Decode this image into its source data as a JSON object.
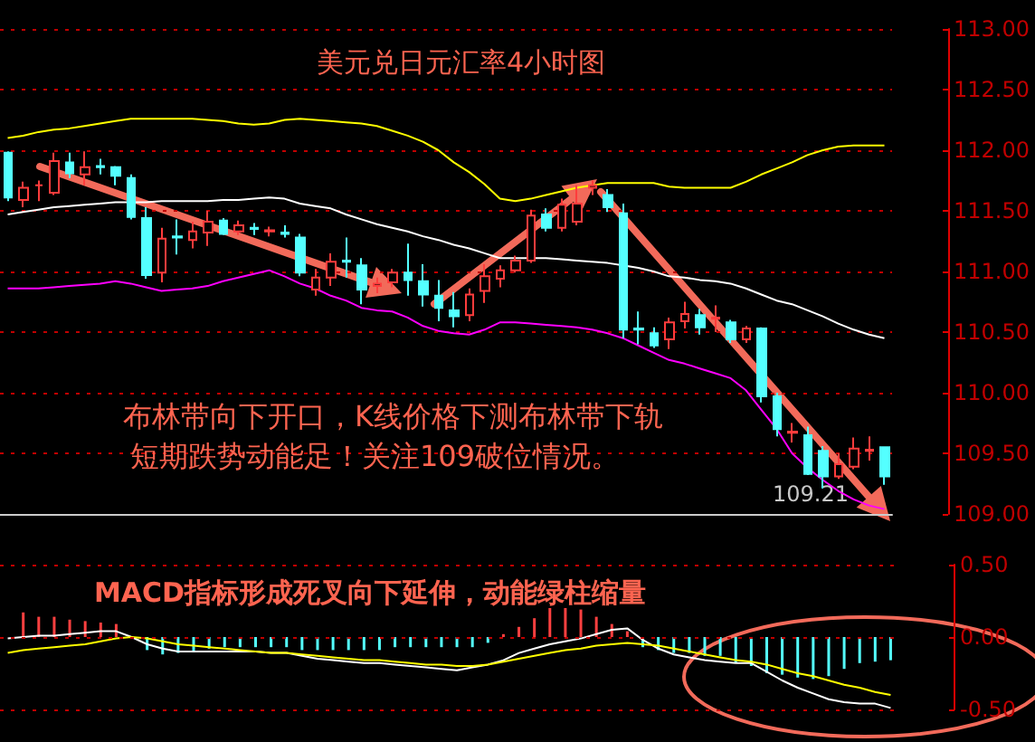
{
  "chart_data": [
    {
      "type": "candlestick",
      "title": "美元兑日元汇率4小时图",
      "tick_labels": "y",
      "grid": "y",
      "marker": "none",
      "line_style": "solid",
      "categories": [
        null,
        null,
        null,
        null,
        null,
        null,
        null,
        null,
        null,
        null,
        null,
        null,
        null,
        null,
        null,
        null,
        null,
        null,
        null,
        null,
        null,
        null,
        null,
        null,
        null,
        null,
        null,
        null,
        null,
        null,
        null,
        null,
        null,
        null,
        null,
        null,
        null,
        null,
        null,
        null,
        null,
        null,
        null,
        null,
        null,
        null,
        null,
        null,
        null,
        null,
        null,
        null,
        null,
        null,
        null,
        null,
        null,
        null
      ],
      "ohlc": [
        [
          111.98,
          111.99,
          111.58,
          111.61
        ],
        [
          111.59,
          111.74,
          111.53,
          111.69
        ],
        [
          111.71,
          111.75,
          111.58,
          111.71
        ],
        [
          111.65,
          111.98,
          111.63,
          111.91
        ],
        [
          111.9,
          111.98,
          111.77,
          111.81
        ],
        [
          111.8,
          111.99,
          111.71,
          111.86
        ],
        [
          111.87,
          111.93,
          111.8,
          111.86
        ],
        [
          111.86,
          111.87,
          111.71,
          111.79
        ],
        [
          111.77,
          111.8,
          111.43,
          111.45
        ],
        [
          111.44,
          111.53,
          110.94,
          110.97
        ],
        [
          110.99,
          111.36,
          110.91,
          111.27
        ],
        [
          111.29,
          111.43,
          111.14,
          111.28
        ],
        [
          111.26,
          111.41,
          111.19,
          111.33
        ],
        [
          111.32,
          111.5,
          111.21,
          111.41
        ],
        [
          111.42,
          111.44,
          111.3,
          111.31
        ],
        [
          111.33,
          111.42,
          111.3,
          111.38
        ],
        [
          111.36,
          111.4,
          111.3,
          111.35
        ],
        [
          111.33,
          111.37,
          111.29,
          111.34
        ],
        [
          111.32,
          111.38,
          111.28,
          111.31
        ],
        [
          111.28,
          111.31,
          110.96,
          110.99
        ],
        [
          110.85,
          111.02,
          110.8,
          110.95
        ],
        [
          110.95,
          111.15,
          110.88,
          111.08
        ],
        [
          111.09,
          111.28,
          110.95,
          111.08
        ],
        [
          111.05,
          111.11,
          110.73,
          110.85
        ],
        [
          110.88,
          110.95,
          110.82,
          110.9
        ],
        [
          110.91,
          111.02,
          110.87,
          110.99
        ],
        [
          110.99,
          111.23,
          110.8,
          110.93
        ],
        [
          110.92,
          111.06,
          110.71,
          110.81
        ],
        [
          110.8,
          110.93,
          110.59,
          110.7
        ],
        [
          110.68,
          110.83,
          110.54,
          110.63
        ],
        [
          110.64,
          110.86,
          110.59,
          110.81
        ],
        [
          110.84,
          111.06,
          110.74,
          110.96
        ],
        [
          110.94,
          111.05,
          110.87,
          111.01
        ],
        [
          111.01,
          111.13,
          110.99,
          111.09
        ],
        [
          111.09,
          111.51,
          111.07,
          111.46
        ],
        [
          111.47,
          111.52,
          111.33,
          111.36
        ],
        [
          111.36,
          111.6,
          111.33,
          111.55
        ],
        [
          111.41,
          111.71,
          111.38,
          111.56
        ],
        [
          111.69,
          111.75,
          111.63,
          111.71
        ],
        [
          111.63,
          111.68,
          111.49,
          111.53
        ],
        [
          111.48,
          111.56,
          110.45,
          110.52
        ],
        [
          110.53,
          110.67,
          110.4,
          110.52
        ],
        [
          110.49,
          110.54,
          110.37,
          110.39
        ],
        [
          110.44,
          110.62,
          110.36,
          110.58
        ],
        [
          110.59,
          110.75,
          110.53,
          110.65
        ],
        [
          110.64,
          110.69,
          110.48,
          110.54
        ],
        [
          110.61,
          110.72,
          110.5,
          110.62
        ],
        [
          110.58,
          110.6,
          110.41,
          110.44
        ],
        [
          110.44,
          110.55,
          110.41,
          110.53
        ],
        [
          110.53,
          110.54,
          109.92,
          109.97
        ],
        [
          109.97,
          110.0,
          109.64,
          109.7
        ],
        [
          109.67,
          109.75,
          109.59,
          109.68
        ],
        [
          109.65,
          109.72,
          109.32,
          109.33
        ],
        [
          109.52,
          109.56,
          109.21,
          109.31
        ],
        [
          109.31,
          109.5,
          109.29,
          109.41
        ],
        [
          109.39,
          109.63,
          109.37,
          109.54
        ],
        [
          109.52,
          109.64,
          109.44,
          109.53
        ],
        [
          109.55,
          109.55,
          109.24,
          109.31
        ]
      ],
      "series": [
        {
          "type": "line",
          "color": "#ffff00",
          "values": [
            112.1,
            112.12,
            112.15,
            112.17,
            112.18,
            112.2,
            112.22,
            112.24,
            112.26,
            112.26,
            112.26,
            112.26,
            112.26,
            112.25,
            112.24,
            112.22,
            112.21,
            112.22,
            112.25,
            112.26,
            112.25,
            112.24,
            112.23,
            112.22,
            112.2,
            112.16,
            112.12,
            112.07,
            112.0,
            111.9,
            111.82,
            111.72,
            111.6,
            111.58,
            111.6,
            111.63,
            111.66,
            111.69,
            111.71,
            111.73,
            111.73,
            111.73,
            111.73,
            111.7,
            111.69,
            111.69,
            111.69,
            111.69,
            111.74,
            111.8,
            111.85,
            111.9,
            111.96,
            112.0,
            112.03,
            112.04,
            112.04,
            112.04
          ]
        },
        {
          "type": "line",
          "color": "#ffffff",
          "values": [
            111.47,
            111.49,
            111.51,
            111.53,
            111.54,
            111.55,
            111.56,
            111.57,
            111.57,
            111.57,
            111.58,
            111.58,
            111.58,
            111.58,
            111.59,
            111.59,
            111.6,
            111.61,
            111.6,
            111.56,
            111.54,
            111.52,
            111.47,
            111.43,
            111.39,
            111.36,
            111.33,
            111.29,
            111.26,
            111.22,
            111.19,
            111.15,
            111.11,
            111.11,
            111.11,
            111.11,
            111.1,
            111.09,
            111.08,
            111.07,
            111.05,
            111.03,
            111.0,
            110.96,
            110.95,
            110.93,
            110.92,
            110.9,
            110.86,
            110.81,
            110.76,
            110.73,
            110.68,
            110.63,
            110.57,
            110.52,
            110.48,
            110.45
          ]
        },
        {
          "type": "line",
          "color": "#ff00ff",
          "values": [
            110.86,
            110.86,
            110.86,
            110.87,
            110.88,
            110.89,
            110.9,
            110.92,
            110.9,
            110.87,
            110.84,
            110.85,
            110.86,
            110.88,
            110.92,
            110.95,
            110.98,
            111.01,
            110.96,
            110.9,
            110.86,
            110.8,
            110.76,
            110.7,
            110.68,
            110.67,
            110.62,
            110.55,
            110.51,
            110.49,
            110.48,
            110.52,
            110.58,
            110.58,
            110.57,
            110.56,
            110.55,
            110.54,
            110.52,
            110.49,
            110.45,
            110.39,
            110.33,
            110.27,
            110.24,
            110.2,
            110.16,
            110.12,
            110.02,
            109.86,
            109.7,
            109.5,
            109.38,
            109.28,
            109.19,
            109.12,
            109.07,
            109.04
          ]
        }
      ],
      "ylim": [
        109,
        113
      ],
      "yticks": [
        {
          "value": 109,
          "label": "109.00"
        },
        {
          "value": 109.5,
          "label": "109.50"
        },
        {
          "value": 110,
          "label": "110.00"
        },
        {
          "value": 110.5,
          "label": "110.50"
        },
        {
          "value": 111,
          "label": "111.00"
        },
        {
          "value": 111.5,
          "label": "111.50"
        },
        {
          "value": 112,
          "label": "112.00"
        },
        {
          "value": 112.5,
          "label": "112.50"
        },
        {
          "value": 113,
          "label": "113.00"
        }
      ],
      "annotations": [
        "布林带向下开口，K线价格下测布林带下轨",
        "短期跌势动能足！关注109破位情况。",
        "109.21"
      ]
    },
    {
      "type": "bar",
      "tick_labels": "y",
      "marker": "none",
      "line_style": "solid",
      "categories": [
        null,
        null,
        null,
        null,
        null,
        null,
        null,
        null,
        null,
        null,
        null,
        null,
        null,
        null,
        null,
        null,
        null,
        null,
        null,
        null,
        null,
        null,
        null,
        null,
        null,
        null,
        null,
        null,
        null,
        null,
        null,
        null,
        null,
        null,
        null,
        null,
        null,
        null,
        null,
        null,
        null,
        null,
        null,
        null,
        null,
        null,
        null,
        null,
        null,
        null,
        null,
        null,
        null,
        null,
        null,
        null,
        null,
        null
      ],
      "series": [
        {
          "type": "bar",
          "color": "#ff4040",
          "values": [
            null,
            0.17,
            0.14,
            0.14,
            0.12,
            0.11,
            0.1,
            0.09,
            null,
            null,
            null,
            null,
            null,
            null,
            null,
            null,
            null,
            null,
            null,
            null,
            null,
            null,
            null,
            null,
            null,
            null,
            null,
            null,
            null,
            null,
            null,
            null,
            0.02,
            0.07,
            0.13,
            0.2,
            0.2,
            0.19,
            0.14,
            0.09,
            0.04,
            null,
            null,
            null,
            null,
            null,
            null,
            null,
            null,
            null,
            null,
            null,
            null,
            null,
            null,
            null,
            null,
            null
          ]
        },
        {
          "type": "bar",
          "color": "#54ffff",
          "values": [
            null,
            null,
            null,
            null,
            null,
            null,
            null,
            null,
            null,
            -0.09,
            -0.12,
            -0.11,
            -0.1,
            -0.08,
            -0.07,
            -0.07,
            -0.07,
            -0.07,
            -0.07,
            -0.09,
            -0.09,
            -0.09,
            -0.09,
            -0.09,
            -0.09,
            -0.07,
            -0.07,
            -0.07,
            -0.07,
            -0.07,
            -0.07,
            -0.04,
            null,
            null,
            null,
            null,
            null,
            null,
            null,
            null,
            null,
            -0.07,
            -0.09,
            -0.11,
            -0.11,
            -0.13,
            -0.13,
            -0.18,
            -0.2,
            -0.25,
            -0.26,
            -0.28,
            -0.29,
            -0.27,
            -0.22,
            -0.18,
            -0.17,
            -0.16
          ]
        },
        {
          "type": "line",
          "color": "#ffffff",
          "values": [
            -0.01,
            0.0,
            0.01,
            0.01,
            0.02,
            0.03,
            0.04,
            0.04,
            0.0,
            -0.05,
            -0.08,
            -0.1,
            -0.1,
            -0.1,
            -0.1,
            -0.1,
            -0.1,
            -0.11,
            -0.11,
            -0.13,
            -0.15,
            -0.16,
            -0.17,
            -0.18,
            -0.18,
            -0.19,
            -0.2,
            -0.21,
            -0.22,
            -0.23,
            -0.21,
            -0.19,
            -0.16,
            -0.11,
            -0.08,
            -0.05,
            -0.03,
            -0.01,
            0.02,
            0.05,
            0.06,
            -0.02,
            -0.08,
            -0.12,
            -0.14,
            -0.16,
            -0.17,
            -0.18,
            -0.18,
            -0.24,
            -0.3,
            -0.35,
            -0.39,
            -0.43,
            -0.45,
            -0.46,
            -0.46,
            -0.49
          ]
        },
        {
          "type": "line",
          "color": "#ffff00",
          "values": [
            -0.11,
            -0.09,
            -0.08,
            -0.07,
            -0.06,
            -0.05,
            -0.03,
            -0.01,
            0.0,
            -0.01,
            -0.03,
            -0.05,
            -0.06,
            -0.07,
            -0.08,
            -0.09,
            -0.1,
            -0.11,
            -0.11,
            -0.12,
            -0.13,
            -0.14,
            -0.15,
            -0.16,
            -0.16,
            -0.17,
            -0.18,
            -0.19,
            -0.19,
            -0.2,
            -0.2,
            -0.19,
            -0.17,
            -0.15,
            -0.13,
            -0.11,
            -0.09,
            -0.08,
            -0.06,
            -0.05,
            -0.04,
            -0.05,
            -0.06,
            -0.08,
            -0.1,
            -0.12,
            -0.14,
            -0.16,
            -0.17,
            -0.19,
            -0.22,
            -0.25,
            -0.27,
            -0.3,
            -0.33,
            -0.35,
            -0.38,
            -0.4
          ]
        }
      ],
      "ylim": [
        -0.5,
        0.5
      ],
      "yticks": [
        {
          "value": -0.5,
          "label": "-0.50"
        },
        {
          "value": 0,
          "label": "0.00"
        },
        {
          "value": 0.5,
          "label": "0.50"
        }
      ],
      "ref_lines": [
        {
          "axis": "y",
          "value": 0.5,
          "color": "#c00000",
          "line_style": "dotted"
        },
        {
          "axis": "y",
          "value": 0,
          "color": "#c00000",
          "line_style": "dotted"
        },
        {
          "axis": "y",
          "value": -0.5,
          "color": "#c00000",
          "line_style": "dotted"
        }
      ],
      "annotations": [
        "MACD指标形成死叉向下延伸，动能绿柱缩量"
      ]
    }
  ]
}
